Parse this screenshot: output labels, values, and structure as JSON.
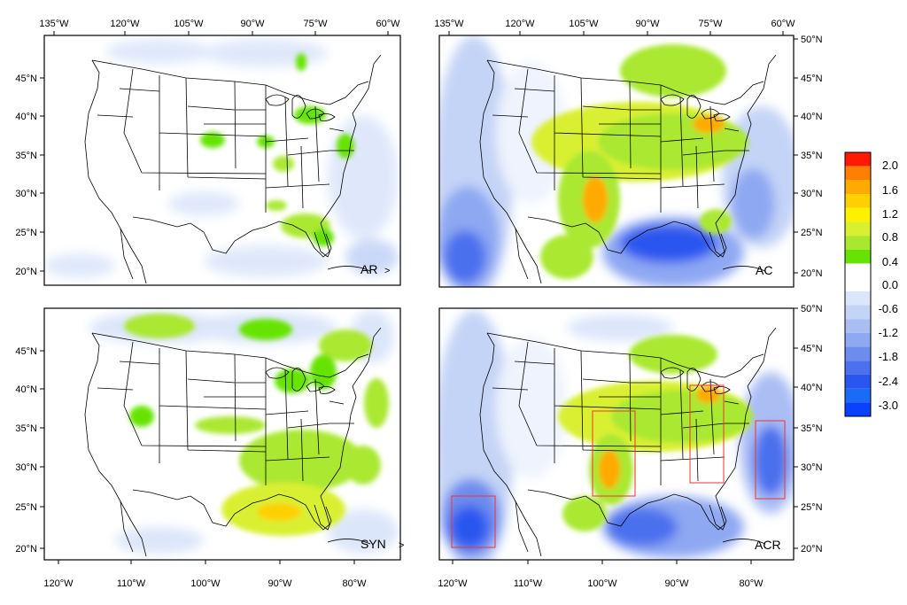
{
  "panels": [
    {
      "label": "AR",
      "top_lon_labels": [
        "135°W",
        "120°W",
        "105°W",
        "90°W",
        "75°W",
        "60°W"
      ],
      "left_lat_labels": [
        "45°N",
        "40°N",
        "35°N",
        "30°N",
        "25°N",
        "20°N"
      ]
    },
    {
      "label": "AC",
      "top_lon_labels": [
        "135°W",
        "120°W",
        "105°W",
        "90°W",
        "75°W",
        "60°W"
      ],
      "right_lat_labels": [
        "50°N",
        "45°N",
        "40°N",
        "35°N",
        "30°N",
        "25°N",
        "20°N"
      ]
    },
    {
      "label": "SYN",
      "bottom_lon_labels": [
        "120°W",
        "110°W",
        "100°W",
        "90°W",
        "80°W"
      ],
      "left_lat_labels": [
        "45°N",
        "40°N",
        "35°N",
        "30°N",
        "25°N",
        "20°N"
      ]
    },
    {
      "label": "ACR",
      "bottom_lon_labels": [
        "120°W",
        "110°W",
        "100°W",
        "90°W",
        "80°W"
      ],
      "right_lat_labels": [
        "50°N",
        "45°N",
        "40°N",
        "35°N",
        "30°N",
        "25°N",
        "20°N"
      ]
    }
  ],
  "colorbar": {
    "labels": [
      "2.0",
      "1.6",
      "1.2",
      "0.8",
      "0.4",
      "0.0",
      "-0.6",
      "-1.2",
      "-1.8",
      "-2.4",
      "-3.0"
    ],
    "colors": [
      "#ff1a00",
      "#ff7f00",
      "#ffaa00",
      "#ffd000",
      "#fff000",
      "#d9f030",
      "#aae830",
      "#66e400",
      "#ffffff",
      "#ffffff",
      "#dce6fa",
      "#c4d4f6",
      "#aabef4",
      "#8ea8f2",
      "#6e8cee",
      "#4c70ee",
      "#2a56f0",
      "#1a6cf4",
      "#0a40ff"
    ]
  }
}
